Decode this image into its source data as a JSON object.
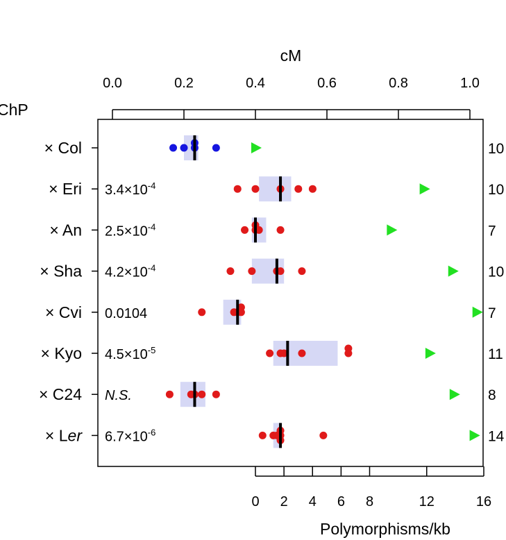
{
  "chart_data": {
    "type": "scatter",
    "title": "",
    "top_axis": {
      "label": "cM",
      "range": [
        0,
        1.0
      ],
      "ticks": [
        0.0,
        0.2,
        0.4,
        0.6,
        0.8,
        1.0
      ],
      "tick_labels": [
        "0.0",
        "0.2",
        "0.4",
        "0.6",
        "0.8",
        "1.0"
      ]
    },
    "bottom_axis": {
      "label": "Polymorphisms/kb",
      "range": [
        -5,
        16
      ],
      "ticks": [
        0,
        2,
        4,
        6,
        8,
        12,
        16
      ],
      "tick_labels": [
        "0",
        "2",
        "4",
        "6",
        "8",
        "12",
        "16"
      ]
    },
    "left_header": "ChP",
    "colors": {
      "control_points": "#1515e0",
      "points": "#e01a1a",
      "median": "#000000",
      "box": "#d6d8f5",
      "triangle": "#22e022"
    },
    "rows": [
      {
        "label": "× Col",
        "italic_part": "",
        "pvalue": "",
        "pvalue_exp": "",
        "pvalue_italic": false,
        "points_cM": [
          0.17,
          0.2,
          0.23,
          0.23,
          0.29
        ],
        "point_color": "control",
        "box_cM": [
          0.2,
          0.24
        ],
        "median_cM": 0.23,
        "polymorphisms_per_kb": 0,
        "count": "10"
      },
      {
        "label": "× Eri",
        "italic_part": "",
        "pvalue": "3.4×10",
        "pvalue_exp": "-4",
        "pvalue_italic": false,
        "points_cM": [
          0.35,
          0.4,
          0.47,
          0.52,
          0.56
        ],
        "point_color": "test",
        "box_cM": [
          0.41,
          0.5
        ],
        "median_cM": 0.47,
        "polymorphisms_per_kb": 11.8,
        "count": "10"
      },
      {
        "label": "× An",
        "italic_part": "",
        "pvalue": "2.5×10",
        "pvalue_exp": "-4",
        "pvalue_italic": false,
        "points_cM": [
          0.37,
          0.4,
          0.4,
          0.41,
          0.47
        ],
        "point_color": "test",
        "box_cM": [
          0.39,
          0.43
        ],
        "median_cM": 0.4,
        "polymorphisms_per_kb": 9.5,
        "count": "7"
      },
      {
        "label": "× Sha",
        "italic_part": "",
        "pvalue": "4.2×10",
        "pvalue_exp": "-4",
        "pvalue_italic": false,
        "points_cM": [
          0.33,
          0.39,
          0.46,
          0.47,
          0.53
        ],
        "point_color": "test",
        "box_cM": [
          0.39,
          0.48
        ],
        "median_cM": 0.46,
        "polymorphisms_per_kb": 13.8,
        "count": "10"
      },
      {
        "label": "× Cvi",
        "italic_part": "",
        "pvalue": "0.0104",
        "pvalue_exp": "",
        "pvalue_italic": false,
        "points_cM": [
          0.25,
          0.34,
          0.35,
          0.36,
          0.36
        ],
        "point_color": "test",
        "box_cM": [
          0.31,
          0.36
        ],
        "median_cM": 0.35,
        "polymorphisms_per_kb": 15.5,
        "count": "7"
      },
      {
        "label": "× Kyo",
        "italic_part": "",
        "pvalue": "4.5×10",
        "pvalue_exp": "-5",
        "pvalue_italic": false,
        "points_cM": [
          0.44,
          0.47,
          0.48,
          0.53,
          0.66,
          0.66
        ],
        "point_color": "test",
        "box_cM": [
          0.45,
          0.63
        ],
        "median_cM": 0.49,
        "polymorphisms_per_kb": 12.2,
        "count": "11"
      },
      {
        "label": "× C24",
        "italic_part": "",
        "pvalue": "N.S.",
        "pvalue_exp": "",
        "pvalue_italic": true,
        "points_cM": [
          0.16,
          0.22,
          0.23,
          0.25,
          0.29
        ],
        "point_color": "test",
        "box_cM": [
          0.19,
          0.26
        ],
        "median_cM": 0.23,
        "polymorphisms_per_kb": 13.9,
        "count": "8"
      },
      {
        "label": "× L",
        "italic_part": "er",
        "pvalue": "6.7×10",
        "pvalue_exp": "-6",
        "pvalue_italic": false,
        "points_cM": [
          0.42,
          0.45,
          0.46,
          0.47,
          0.47,
          0.47,
          0.59
        ],
        "point_color": "test",
        "box_cM": [
          0.45,
          0.47
        ],
        "median_cM": 0.47,
        "polymorphisms_per_kb": 15.3,
        "count": "14"
      }
    ],
    "grid": false,
    "legend": "none"
  }
}
